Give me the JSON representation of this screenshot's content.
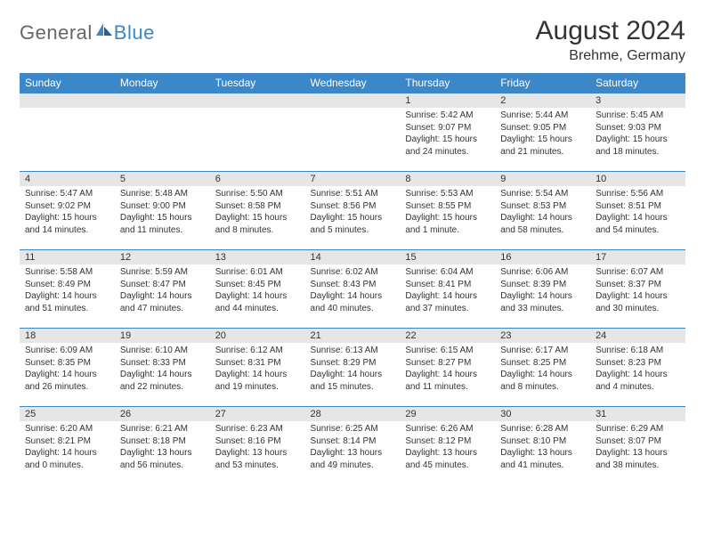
{
  "brand": {
    "word1": "General",
    "word2": "Blue",
    "text_color": "#666666",
    "accent_color": "#3b87c8"
  },
  "title": "August 2024",
  "location": "Brehme, Germany",
  "header_bg": "#3b87c8",
  "header_fg": "#ffffff",
  "daynum_bg": "#e6e6e6",
  "row_border_color": "#3b87c8",
  "weekdays": [
    "Sunday",
    "Monday",
    "Tuesday",
    "Wednesday",
    "Thursday",
    "Friday",
    "Saturday"
  ],
  "weeks": [
    [
      null,
      null,
      null,
      null,
      {
        "n": "1",
        "sr": "5:42 AM",
        "ss": "9:07 PM",
        "dl": "15 hours and 24 minutes."
      },
      {
        "n": "2",
        "sr": "5:44 AM",
        "ss": "9:05 PM",
        "dl": "15 hours and 21 minutes."
      },
      {
        "n": "3",
        "sr": "5:45 AM",
        "ss": "9:03 PM",
        "dl": "15 hours and 18 minutes."
      }
    ],
    [
      {
        "n": "4",
        "sr": "5:47 AM",
        "ss": "9:02 PM",
        "dl": "15 hours and 14 minutes."
      },
      {
        "n": "5",
        "sr": "5:48 AM",
        "ss": "9:00 PM",
        "dl": "15 hours and 11 minutes."
      },
      {
        "n": "6",
        "sr": "5:50 AM",
        "ss": "8:58 PM",
        "dl": "15 hours and 8 minutes."
      },
      {
        "n": "7",
        "sr": "5:51 AM",
        "ss": "8:56 PM",
        "dl": "15 hours and 5 minutes."
      },
      {
        "n": "8",
        "sr": "5:53 AM",
        "ss": "8:55 PM",
        "dl": "15 hours and 1 minute."
      },
      {
        "n": "9",
        "sr": "5:54 AM",
        "ss": "8:53 PM",
        "dl": "14 hours and 58 minutes."
      },
      {
        "n": "10",
        "sr": "5:56 AM",
        "ss": "8:51 PM",
        "dl": "14 hours and 54 minutes."
      }
    ],
    [
      {
        "n": "11",
        "sr": "5:58 AM",
        "ss": "8:49 PM",
        "dl": "14 hours and 51 minutes."
      },
      {
        "n": "12",
        "sr": "5:59 AM",
        "ss": "8:47 PM",
        "dl": "14 hours and 47 minutes."
      },
      {
        "n": "13",
        "sr": "6:01 AM",
        "ss": "8:45 PM",
        "dl": "14 hours and 44 minutes."
      },
      {
        "n": "14",
        "sr": "6:02 AM",
        "ss": "8:43 PM",
        "dl": "14 hours and 40 minutes."
      },
      {
        "n": "15",
        "sr": "6:04 AM",
        "ss": "8:41 PM",
        "dl": "14 hours and 37 minutes."
      },
      {
        "n": "16",
        "sr": "6:06 AM",
        "ss": "8:39 PM",
        "dl": "14 hours and 33 minutes."
      },
      {
        "n": "17",
        "sr": "6:07 AM",
        "ss": "8:37 PM",
        "dl": "14 hours and 30 minutes."
      }
    ],
    [
      {
        "n": "18",
        "sr": "6:09 AM",
        "ss": "8:35 PM",
        "dl": "14 hours and 26 minutes."
      },
      {
        "n": "19",
        "sr": "6:10 AM",
        "ss": "8:33 PM",
        "dl": "14 hours and 22 minutes."
      },
      {
        "n": "20",
        "sr": "6:12 AM",
        "ss": "8:31 PM",
        "dl": "14 hours and 19 minutes."
      },
      {
        "n": "21",
        "sr": "6:13 AM",
        "ss": "8:29 PM",
        "dl": "14 hours and 15 minutes."
      },
      {
        "n": "22",
        "sr": "6:15 AM",
        "ss": "8:27 PM",
        "dl": "14 hours and 11 minutes."
      },
      {
        "n": "23",
        "sr": "6:17 AM",
        "ss": "8:25 PM",
        "dl": "14 hours and 8 minutes."
      },
      {
        "n": "24",
        "sr": "6:18 AM",
        "ss": "8:23 PM",
        "dl": "14 hours and 4 minutes."
      }
    ],
    [
      {
        "n": "25",
        "sr": "6:20 AM",
        "ss": "8:21 PM",
        "dl": "14 hours and 0 minutes."
      },
      {
        "n": "26",
        "sr": "6:21 AM",
        "ss": "8:18 PM",
        "dl": "13 hours and 56 minutes."
      },
      {
        "n": "27",
        "sr": "6:23 AM",
        "ss": "8:16 PM",
        "dl": "13 hours and 53 minutes."
      },
      {
        "n": "28",
        "sr": "6:25 AM",
        "ss": "8:14 PM",
        "dl": "13 hours and 49 minutes."
      },
      {
        "n": "29",
        "sr": "6:26 AM",
        "ss": "8:12 PM",
        "dl": "13 hours and 45 minutes."
      },
      {
        "n": "30",
        "sr": "6:28 AM",
        "ss": "8:10 PM",
        "dl": "13 hours and 41 minutes."
      },
      {
        "n": "31",
        "sr": "6:29 AM",
        "ss": "8:07 PM",
        "dl": "13 hours and 38 minutes."
      }
    ]
  ],
  "labels": {
    "sunrise": "Sunrise:",
    "sunset": "Sunset:",
    "daylight": "Daylight:"
  }
}
